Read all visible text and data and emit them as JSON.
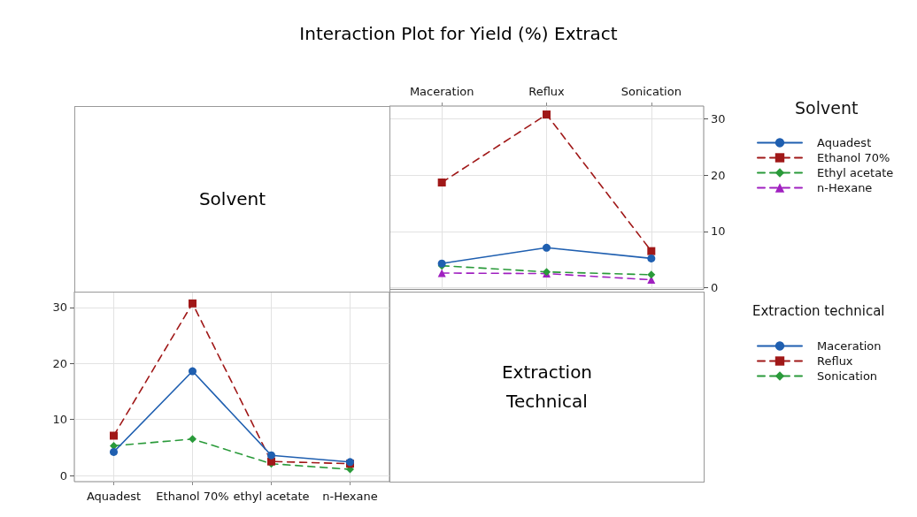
{
  "chart_data": [
    {
      "type": "line",
      "title": "Interaction Plot for Yield (%) Extract",
      "annotations": [
        "Solvent"
      ],
      "legend_title": "Solvent",
      "legend": "right",
      "grid": true,
      "tick_labels": "xy",
      "categories": [
        "Maceration",
        "Reflux",
        "Sonication"
      ],
      "ylim": [
        -0.3,
        32.3
      ],
      "yticks": [
        0,
        10,
        20,
        30
      ],
      "series": [
        {
          "name": "Aquadest",
          "color": "#1f5fb0",
          "marker": "circle",
          "line_style": "solid",
          "values": [
            4.3,
            7.1,
            5.2
          ]
        },
        {
          "name": "Ethanol 70%",
          "color": "#a01818",
          "marker": "square",
          "line_style": "dashed",
          "values": [
            18.7,
            30.8,
            6.5
          ]
        },
        {
          "name": "Ethyl acetate",
          "color": "#2a9a3a",
          "marker": "diamond",
          "line_style": "dashed",
          "values": [
            3.9,
            2.8,
            2.3
          ]
        },
        {
          "name": "n-Hexane",
          "color": "#a020c0",
          "marker": "triangle",
          "line_style": "dashed",
          "values": [
            2.6,
            2.5,
            1.4
          ]
        }
      ]
    },
    {
      "type": "line",
      "annotations": [
        "Extraction Technical"
      ],
      "legend_title": "Extraction technical",
      "legend": "right",
      "grid": true,
      "categories": [
        "Aquadest",
        "Ethanol 70%",
        "ethyl acetate",
        "n-Hexane"
      ],
      "ylim": [
        -1.1,
        32.8
      ],
      "yticks": [
        0,
        10,
        20,
        30
      ],
      "series": [
        {
          "name": "Maceration",
          "color": "#1f5fb0",
          "marker": "circle",
          "line_style": "solid",
          "values": [
            4.2,
            18.6,
            3.6,
            2.4
          ]
        },
        {
          "name": "Reflux",
          "color": "#a01818",
          "marker": "square",
          "line_style": "dashed",
          "values": [
            7.1,
            30.7,
            2.5,
            2.1
          ]
        },
        {
          "name": "Sonication",
          "color": "#2a9a3a",
          "marker": "diamond",
          "line_style": "dashed",
          "values": [
            5.3,
            6.5,
            2.1,
            1.1
          ]
        }
      ]
    }
  ]
}
